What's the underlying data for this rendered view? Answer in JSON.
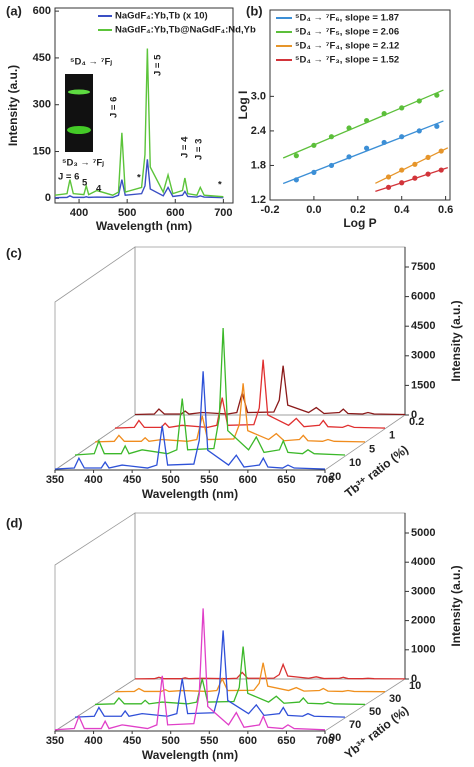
{
  "chart_data": [
    {
      "type": "line",
      "panel_label": "(a)",
      "x_label": "Wavelength (nm)",
      "y_label": "Intensity (a.u.)",
      "annotations": [
        "⁵D₄ → ⁷Fⱼ",
        "⁵D₃ → ⁷Fⱼ",
        "J = 6",
        "J = 5",
        "J = 4",
        "J = 3",
        "J = 6",
        "5",
        "4",
        "*",
        "*"
      ],
      "x": [
        350,
        375,
        381,
        388,
        410,
        415,
        420,
        437,
        470,
        482,
        489,
        496,
        530,
        537,
        542,
        548,
        575,
        585,
        595,
        615,
        620,
        626,
        645,
        652,
        660,
        700
      ],
      "xlim": [
        350,
        720
      ],
      "xticks": [
        400,
        500,
        600,
        700
      ],
      "ylim": [
        -15,
        610
      ],
      "yticks": [
        0,
        150,
        300,
        450,
        600
      ],
      "series": [
        {
          "name": "NaGdF₄:Yb,Tb (x 10)",
          "color": "#3a4fc4",
          "values": [
            2,
            3,
            8,
            3,
            3,
            5,
            3,
            4,
            3,
            10,
            60,
            10,
            15,
            40,
            125,
            30,
            8,
            35,
            6,
            10,
            22,
            6,
            4,
            8,
            4,
            2
          ]
        },
        {
          "name": "NaGdF₄:Yb,Tb@NaGdF₄:Nd,Yb",
          "color": "#5cc43a",
          "values": [
            10,
            15,
            60,
            15,
            12,
            40,
            12,
            25,
            10,
            20,
            210,
            20,
            35,
            140,
            480,
            100,
            20,
            75,
            15,
            25,
            65,
            15,
            10,
            35,
            10,
            5
          ]
        }
      ]
    },
    {
      "type": "scatter",
      "panel_label": "(b)",
      "x_label": "Log P",
      "y_label": "Log  I",
      "xlim": [
        -0.2,
        0.62
      ],
      "xticks": [
        -0.2,
        {
          "value": 0,
          "label": "0.0"
        },
        0.2,
        0.4,
        0.6
      ],
      "ylim": [
        1.2,
        4.5
      ],
      "yticks": [
        1.2,
        1.8,
        2.4,
        {
          "value": 3,
          "label": "3.0"
        }
      ],
      "series": [
        {
          "name": "⁵D₄ → ⁷F₆, slope = 1.87",
          "color": "#3c8fd6",
          "x": [
            -0.08,
            0,
            0.08,
            0.16,
            0.24,
            0.32,
            0.4,
            0.48,
            0.56
          ],
          "values": [
            1.55,
            1.68,
            1.8,
            1.95,
            2.1,
            2.2,
            2.3,
            2.4,
            2.48
          ]
        },
        {
          "name": "⁵D₄ → ⁷F₅, slope = 2.06",
          "color": "#5cbf3a",
          "x": [
            -0.08,
            0,
            0.08,
            0.16,
            0.24,
            0.32,
            0.4,
            0.48,
            0.56
          ],
          "values": [
            1.97,
            2.15,
            2.3,
            2.45,
            2.58,
            2.7,
            2.8,
            2.92,
            3.02
          ]
        },
        {
          "name": "⁵D₄ → ⁷F₄, slope = 2.12",
          "color": "#e6952a",
          "x": [
            0.34,
            0.4,
            0.46,
            0.52,
            0.58
          ],
          "values": [
            1.6,
            1.72,
            1.82,
            1.94,
            2.05
          ]
        },
        {
          "name": "⁵D₄ → ⁷F₃, slope = 1.52",
          "color": "#d2343a",
          "x": [
            0.34,
            0.4,
            0.46,
            0.52,
            0.58
          ],
          "values": [
            1.42,
            1.5,
            1.58,
            1.65,
            1.72
          ]
        }
      ]
    },
    {
      "type": "waterfall",
      "panel_label": "(c)",
      "x_label": "Wavelength (nm)",
      "y_label": "Intensity (a.u.)",
      "z_label": "Tb³⁺ ratio (%)",
      "x": [
        350,
        375,
        381,
        388,
        410,
        415,
        420,
        437,
        470,
        482,
        489,
        496,
        530,
        537,
        542,
        548,
        575,
        585,
        595,
        615,
        620,
        626,
        645,
        652,
        660,
        700
      ],
      "xlim": [
        350,
        700
      ],
      "xticks": [
        350,
        400,
        450,
        500,
        550,
        600,
        650,
        700
      ],
      "ylim": [
        0,
        7500
      ],
      "yticks": [
        0,
        1500,
        3000,
        4500,
        6000,
        7500
      ],
      "zcategories": [
        "0.2",
        "1",
        "5",
        "10",
        "20"
      ],
      "series": [
        {
          "color": "#8b1a1a",
          "values": [
            25,
            50,
            300,
            50,
            50,
            200,
            50,
            125,
            50,
            125,
            1125,
            125,
            150,
            750,
            2500,
            500,
            125,
            375,
            75,
            125,
            300,
            75,
            50,
            125,
            50,
            25
          ]
        },
        {
          "color": "#e03030",
          "values": [
            35,
            70,
            420,
            70,
            70,
            280,
            70,
            175,
            70,
            175,
            1575,
            175,
            210,
            1050,
            3500,
            700,
            175,
            525,
            105,
            175,
            420,
            105,
            70,
            175,
            70,
            35
          ]
        },
        {
          "color": "#f08c1e",
          "values": [
            30,
            60,
            360,
            60,
            60,
            240,
            60,
            150,
            60,
            150,
            1350,
            150,
            180,
            900,
            3000,
            600,
            150,
            450,
            90,
            150,
            360,
            90,
            60,
            150,
            60,
            30
          ]
        },
        {
          "color": "#3cb82a",
          "values": [
            65,
            130,
            780,
            130,
            130,
            520,
            130,
            325,
            130,
            325,
            2925,
            325,
            390,
            1950,
            6500,
            1300,
            325,
            975,
            195,
            325,
            780,
            195,
            130,
            325,
            130,
            65
          ]
        },
        {
          "color": "#2e52d8",
          "values": [
            50,
            100,
            600,
            100,
            100,
            400,
            100,
            250,
            100,
            250,
            2250,
            250,
            300,
            1500,
            5000,
            1000,
            250,
            750,
            150,
            250,
            600,
            150,
            100,
            250,
            100,
            50
          ]
        }
      ]
    },
    {
      "type": "waterfall",
      "panel_label": "(d)",
      "x_label": "Wavelength (nm)",
      "y_label": "Intensity (a.u.)",
      "z_label": "Yb³⁺ ratio (%)",
      "x": [
        350,
        375,
        381,
        388,
        410,
        415,
        420,
        437,
        470,
        482,
        489,
        496,
        530,
        537,
        542,
        548,
        575,
        585,
        595,
        615,
        620,
        626,
        645,
        652,
        660,
        700
      ],
      "xlim": [
        350,
        700
      ],
      "xticks": [
        350,
        400,
        450,
        500,
        550,
        600,
        650,
        700
      ],
      "ylim": [
        0,
        5000
      ],
      "yticks": [
        0,
        1000,
        2000,
        3000,
        4000,
        5000
      ],
      "zcategories": [
        "10",
        "30",
        "50",
        "70",
        "90"
      ],
      "series": [
        {
          "color": "#d83030",
          "values": [
            5,
            10,
            60,
            10,
            10,
            40,
            10,
            25,
            10,
            25,
            225,
            25,
            30,
            150,
            500,
            100,
            25,
            75,
            15,
            25,
            60,
            15,
            10,
            25,
            10,
            5
          ]
        },
        {
          "color": "#f0901e",
          "values": [
            10,
            20,
            120,
            20,
            20,
            80,
            20,
            50,
            20,
            50,
            450,
            50,
            60,
            300,
            1000,
            200,
            50,
            150,
            30,
            50,
            120,
            30,
            20,
            50,
            20,
            10
          ]
        },
        {
          "color": "#3cb82a",
          "values": [
            20,
            40,
            240,
            40,
            40,
            160,
            40,
            100,
            40,
            100,
            900,
            100,
            120,
            600,
            2000,
            400,
            100,
            300,
            60,
            100,
            240,
            60,
            40,
            100,
            40,
            20
          ]
        },
        {
          "color": "#3050d8",
          "values": [
            30,
            60,
            360,
            60,
            60,
            240,
            60,
            150,
            60,
            150,
            1350,
            150,
            180,
            900,
            3000,
            600,
            150,
            450,
            90,
            150,
            360,
            90,
            60,
            150,
            60,
            30
          ]
        },
        {
          "color": "#e040c8",
          "values": [
            42,
            84,
            504,
            84,
            84,
            336,
            84,
            210,
            84,
            210,
            1890,
            210,
            252,
            1260,
            4200,
            840,
            210,
            630,
            126,
            210,
            504,
            126,
            84,
            210,
            84,
            42
          ]
        }
      ]
    }
  ]
}
